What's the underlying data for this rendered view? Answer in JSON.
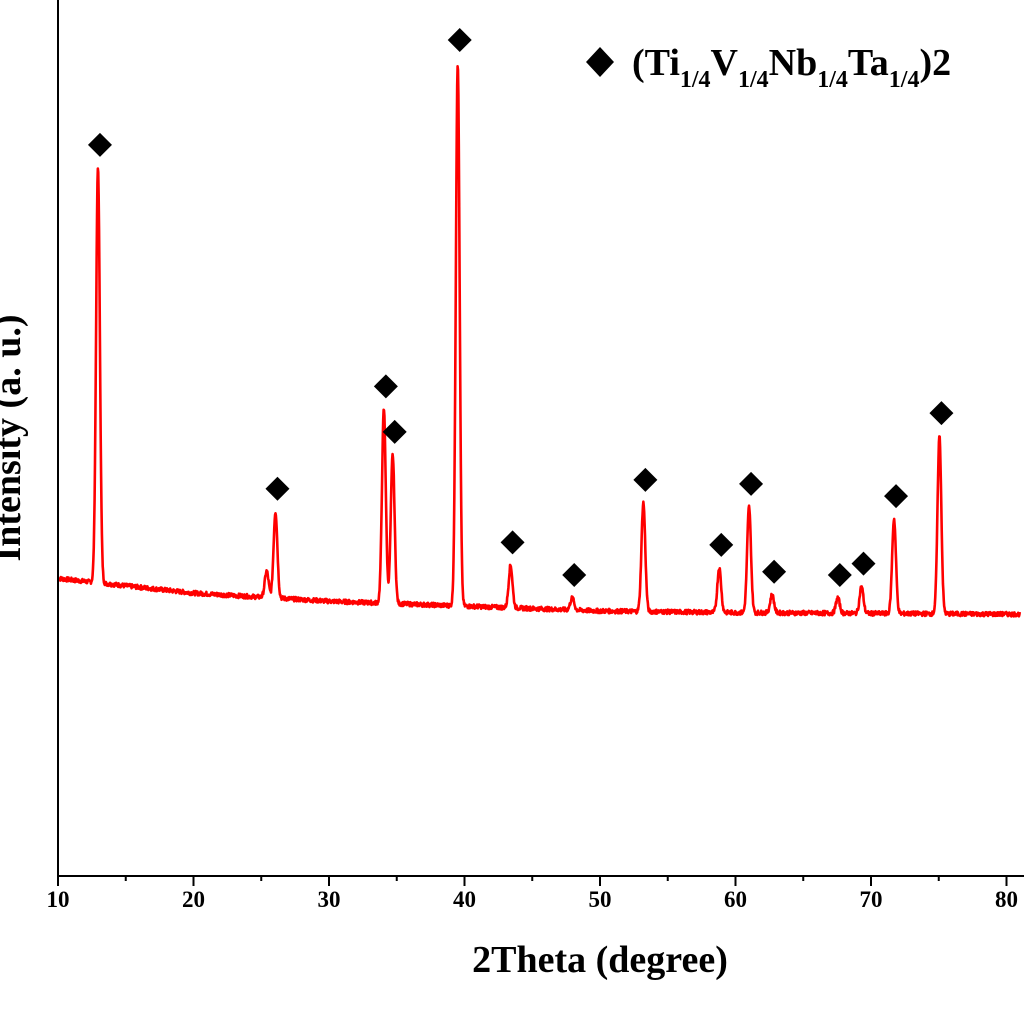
{
  "chart_data": {
    "type": "line",
    "xlabel": "2Theta (degree)",
    "ylabel": "Intensity (a. u.)",
    "xlim": [
      10,
      81
    ],
    "x_ticks": [
      10,
      20,
      30,
      40,
      50,
      60,
      70,
      80
    ],
    "x_tick_labels": [
      "10",
      "20",
      "30",
      "40",
      "50",
      "60",
      "70",
      "80"
    ],
    "y_ticks_shown": false,
    "grid": false,
    "legend_position": "top-right",
    "legend": {
      "marker": "diamond",
      "parts": [
        "(Ti",
        "1/4",
        "V",
        "1/4",
        "Nb",
        "1/4",
        "Ta",
        "1/4",
        ")2"
      ]
    },
    "colors": {
      "line": "#ff0000",
      "marker": "#000000",
      "axis": "#000000"
    },
    "series": [
      {
        "style": "xrd-pattern",
        "baseline": [
          [
            10,
            36.6
          ],
          [
            20,
            34.8
          ],
          [
            30,
            33.8
          ],
          [
            40,
            33.2
          ],
          [
            50,
            32.6
          ],
          [
            60,
            32.4
          ],
          [
            70,
            32.3
          ],
          [
            81,
            32.2
          ]
        ],
        "peaks": [
          {
            "x": 12.95,
            "y": 87.1,
            "marked": true
          },
          {
            "x": 25.4,
            "y": 37.5,
            "marked": false
          },
          {
            "x": 26.05,
            "y": 44.8,
            "marked": true
          },
          {
            "x": 34.05,
            "y": 57.4,
            "marked": true
          },
          {
            "x": 34.7,
            "y": 51.8,
            "marked": true
          },
          {
            "x": 39.5,
            "y": 100.0,
            "marked": true
          },
          {
            "x": 43.4,
            "y": 38.2,
            "marked": true
          },
          {
            "x": 47.95,
            "y": 34.2,
            "marked": true
          },
          {
            "x": 53.2,
            "y": 45.9,
            "marked": true
          },
          {
            "x": 58.8,
            "y": 37.9,
            "marked": true
          },
          {
            "x": 61.0,
            "y": 45.4,
            "marked": true
          },
          {
            "x": 62.7,
            "y": 34.6,
            "marked": true
          },
          {
            "x": 67.55,
            "y": 34.2,
            "marked": true
          },
          {
            "x": 69.3,
            "y": 35.6,
            "marked": true
          },
          {
            "x": 71.7,
            "y": 43.9,
            "marked": true
          },
          {
            "x": 75.05,
            "y": 54.1,
            "marked": true
          }
        ]
      }
    ]
  }
}
